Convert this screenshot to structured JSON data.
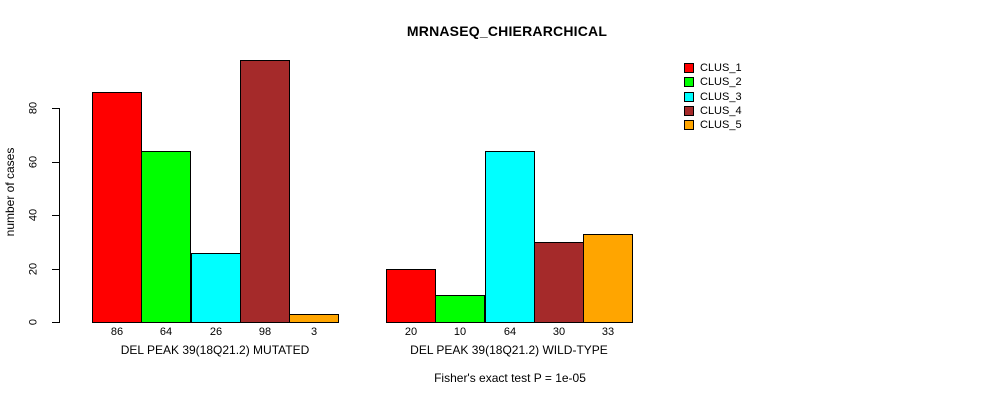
{
  "chart_data": {
    "type": "bar",
    "title": "MRNASEQ_CHIERARCHICAL",
    "ylabel": "number of cases",
    "xlabel": "",
    "footnote": "Fisher's exact test P = 1e-05",
    "y_ticks": [
      0,
      20,
      40,
      60,
      80
    ],
    "ylim": [
      0,
      100
    ],
    "grid": false,
    "legend_position": "right",
    "series": [
      {
        "name": "CLUS_1",
        "color": "#ff0000"
      },
      {
        "name": "CLUS_2",
        "color": "#00ff00"
      },
      {
        "name": "CLUS_3",
        "color": "#00ffff"
      },
      {
        "name": "CLUS_4",
        "color": "#a52a2a"
      },
      {
        "name": "CLUS_5",
        "color": "#ffa500"
      }
    ],
    "groups": [
      {
        "label": "DEL PEAK 39(18Q21.2) MUTATED",
        "values": [
          86,
          64,
          26,
          98,
          3
        ]
      },
      {
        "label": "DEL PEAK 39(18Q21.2) WILD-TYPE",
        "values": [
          20,
          10,
          64,
          30,
          33
        ]
      }
    ]
  }
}
